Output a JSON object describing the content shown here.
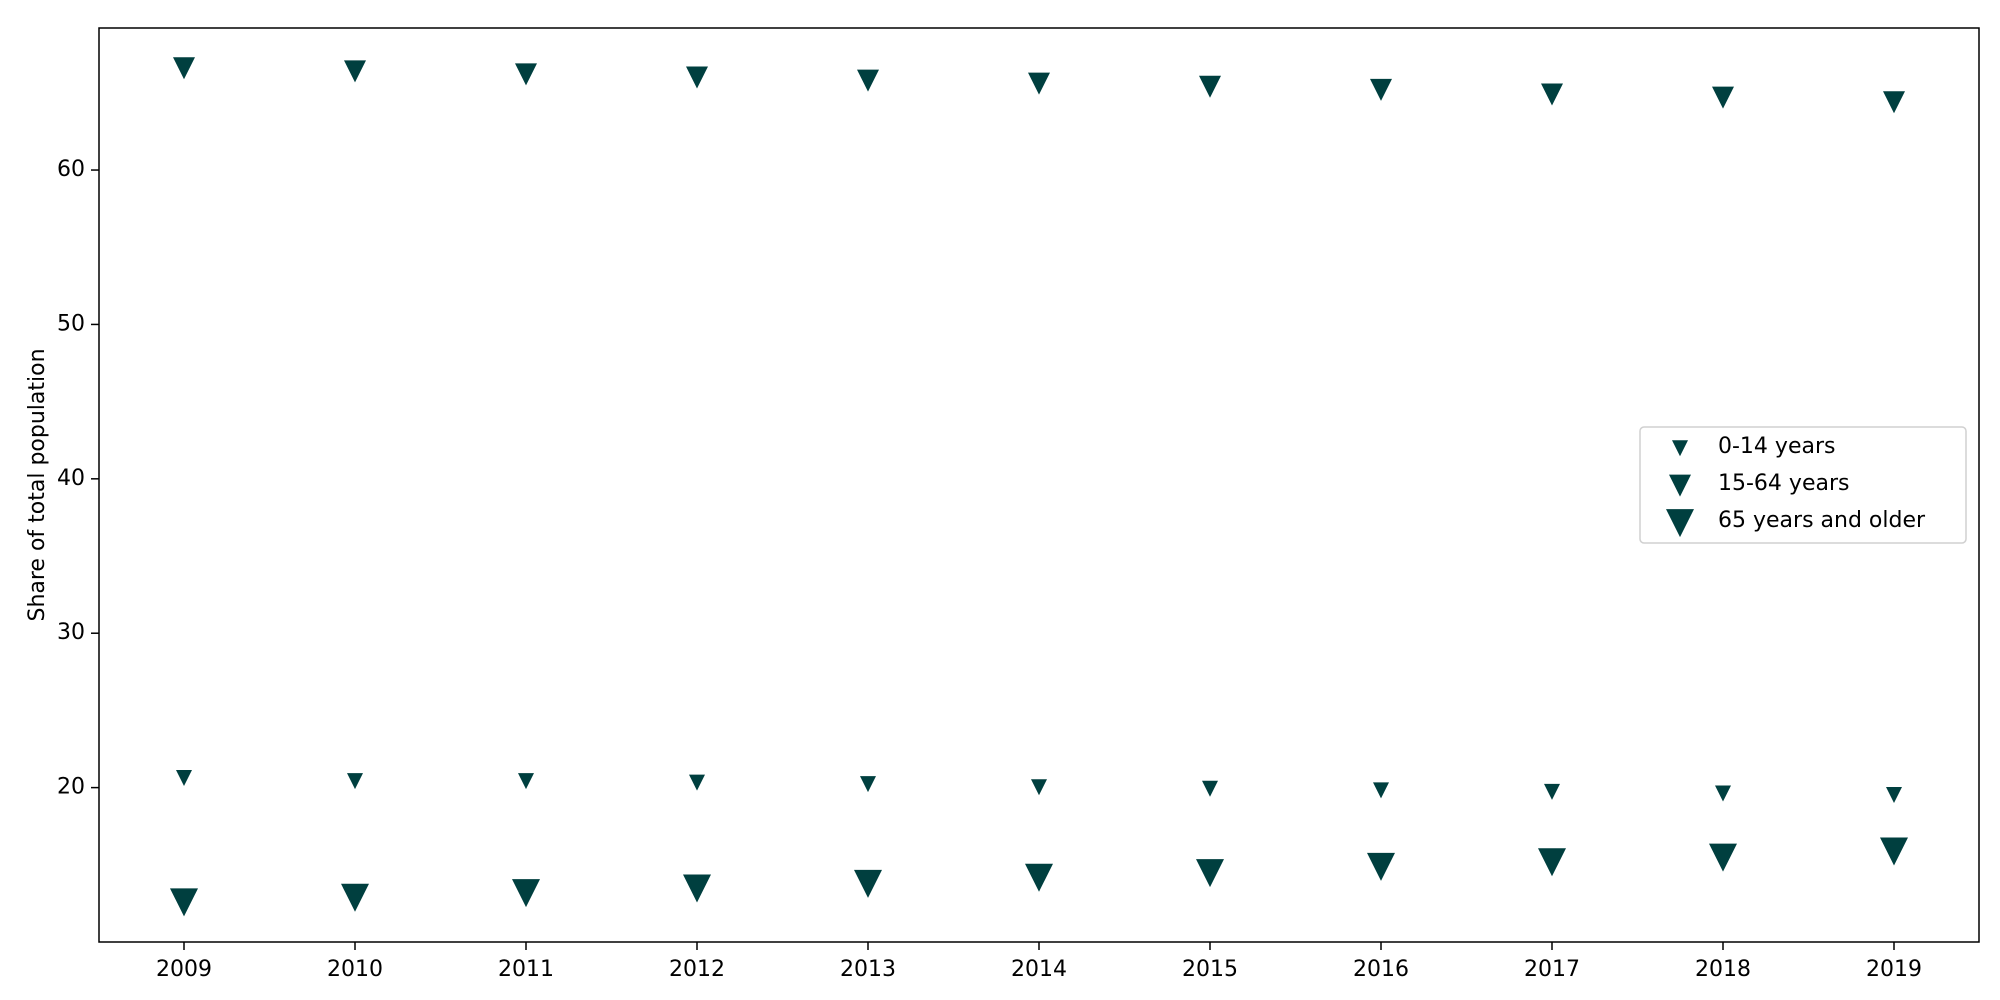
{
  "chart_data": {
    "type": "scatter",
    "title": "",
    "xlabel": "",
    "ylabel": "Share of total population",
    "x": [
      "2009",
      "2010",
      "2011",
      "2012",
      "2013",
      "2014",
      "2015",
      "2016",
      "2017",
      "2018",
      "2019"
    ],
    "ylim": [
      10,
      69.2
    ],
    "yticks": [
      20,
      30,
      40,
      50,
      60
    ],
    "grid": false,
    "legend_position": "center-right",
    "marker": "triangle-down",
    "color": "#003f3f",
    "series": [
      {
        "name": "0-14 years",
        "values": [
          20.7,
          20.5,
          20.5,
          20.4,
          20.3,
          20.1,
          20.0,
          19.9,
          19.8,
          19.7,
          19.6
        ]
      },
      {
        "name": "15-64 years",
        "values": [
          66.7,
          66.5,
          66.3,
          66.1,
          65.9,
          65.7,
          65.5,
          65.3,
          65.0,
          64.8,
          64.5
        ]
      },
      {
        "name": "65 years and older",
        "values": [
          12.7,
          13.0,
          13.3,
          13.6,
          13.9,
          14.3,
          14.6,
          15.0,
          15.3,
          15.6,
          16.0
        ]
      }
    ]
  }
}
